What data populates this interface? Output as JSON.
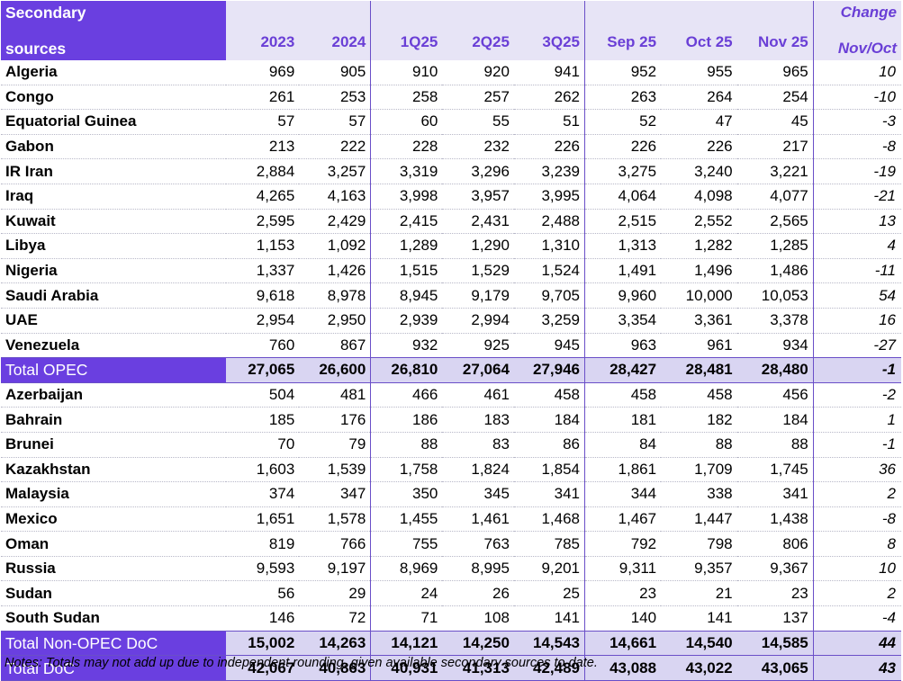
{
  "header": {
    "name_line1": "Secondary",
    "name_line2": "sources",
    "columns": [
      "2023",
      "2024",
      "1Q25",
      "2Q25",
      "3Q25",
      "Sep 25",
      "Oct 25",
      "Nov 25"
    ],
    "change_line1": "Change",
    "change_line2": "Nov/Oct"
  },
  "opec_rows": [
    {
      "name": "Algeria",
      "values": [
        "969",
        "905",
        "910",
        "920",
        "941",
        "952",
        "955",
        "965"
      ],
      "change": "10"
    },
    {
      "name": "Congo",
      "values": [
        "261",
        "253",
        "258",
        "257",
        "262",
        "263",
        "264",
        "254"
      ],
      "change": "-10"
    },
    {
      "name": "Equatorial Guinea",
      "values": [
        "57",
        "57",
        "60",
        "55",
        "51",
        "52",
        "47",
        "45"
      ],
      "change": "-3"
    },
    {
      "name": "Gabon",
      "values": [
        "213",
        "222",
        "228",
        "232",
        "226",
        "226",
        "226",
        "217"
      ],
      "change": "-8"
    },
    {
      "name": "IR Iran",
      "values": [
        "2,884",
        "3,257",
        "3,319",
        "3,296",
        "3,239",
        "3,275",
        "3,240",
        "3,221"
      ],
      "change": "-19"
    },
    {
      "name": "Iraq",
      "values": [
        "4,265",
        "4,163",
        "3,998",
        "3,957",
        "3,995",
        "4,064",
        "4,098",
        "4,077"
      ],
      "change": "-21"
    },
    {
      "name": "Kuwait",
      "values": [
        "2,595",
        "2,429",
        "2,415",
        "2,431",
        "2,488",
        "2,515",
        "2,552",
        "2,565"
      ],
      "change": "13"
    },
    {
      "name": "Libya",
      "values": [
        "1,153",
        "1,092",
        "1,289",
        "1,290",
        "1,310",
        "1,313",
        "1,282",
        "1,285"
      ],
      "change": "4"
    },
    {
      "name": "Nigeria",
      "values": [
        "1,337",
        "1,426",
        "1,515",
        "1,529",
        "1,524",
        "1,491",
        "1,496",
        "1,486"
      ],
      "change": "-11"
    },
    {
      "name": "Saudi Arabia",
      "values": [
        "9,618",
        "8,978",
        "8,945",
        "9,179",
        "9,705",
        "9,960",
        "10,000",
        "10,053"
      ],
      "change": "54"
    },
    {
      "name": "UAE",
      "values": [
        "2,954",
        "2,950",
        "2,939",
        "2,994",
        "3,259",
        "3,354",
        "3,361",
        "3,378"
      ],
      "change": "16"
    },
    {
      "name": "Venezuela",
      "values": [
        "760",
        "867",
        "932",
        "925",
        "945",
        "963",
        "961",
        "934"
      ],
      "change": "-27"
    }
  ],
  "total_opec": {
    "name": "Total  OPEC",
    "values": [
      "27,065",
      "26,600",
      "26,810",
      "27,064",
      "27,946",
      "28,427",
      "28,481",
      "28,480"
    ],
    "change": "-1"
  },
  "non_opec_rows": [
    {
      "name": "Azerbaijan",
      "values": [
        "504",
        "481",
        "466",
        "461",
        "458",
        "458",
        "458",
        "456"
      ],
      "change": "-2"
    },
    {
      "name": "Bahrain",
      "values": [
        "185",
        "176",
        "186",
        "183",
        "184",
        "181",
        "182",
        "184"
      ],
      "change": "1"
    },
    {
      "name": "Brunei",
      "values": [
        "70",
        "79",
        "88",
        "83",
        "86",
        "84",
        "88",
        "88"
      ],
      "change": "-1"
    },
    {
      "name": "Kazakhstan",
      "values": [
        "1,603",
        "1,539",
        "1,758",
        "1,824",
        "1,854",
        "1,861",
        "1,709",
        "1,745"
      ],
      "change": "36"
    },
    {
      "name": "Malaysia",
      "values": [
        "374",
        "347",
        "350",
        "345",
        "341",
        "344",
        "338",
        "341"
      ],
      "change": "2"
    },
    {
      "name": "Mexico",
      "values": [
        "1,651",
        "1,578",
        "1,455",
        "1,461",
        "1,468",
        "1,467",
        "1,447",
        "1,438"
      ],
      "change": "-8"
    },
    {
      "name": "Oman",
      "values": [
        "819",
        "766",
        "755",
        "763",
        "785",
        "792",
        "798",
        "806"
      ],
      "change": "8"
    },
    {
      "name": "Russia",
      "values": [
        "9,593",
        "9,197",
        "8,969",
        "8,995",
        "9,201",
        "9,311",
        "9,357",
        "9,367"
      ],
      "change": "10"
    },
    {
      "name": "Sudan",
      "values": [
        "56",
        "29",
        "24",
        "26",
        "25",
        "23",
        "21",
        "23"
      ],
      "change": "2"
    },
    {
      "name": "South Sudan",
      "values": [
        "146",
        "72",
        "71",
        "108",
        "141",
        "140",
        "141",
        "137"
      ],
      "change": "-4"
    }
  ],
  "total_non_opec": {
    "name": "Total Non-OPEC DoC",
    "values": [
      "15,002",
      "14,263",
      "14,121",
      "14,250",
      "14,543",
      "14,661",
      "14,540",
      "14,585"
    ],
    "change": "44"
  },
  "total_doc": {
    "name": "Total DoC",
    "values": [
      "42,067",
      "40,863",
      "40,931",
      "41,313",
      "42,489",
      "43,088",
      "43,022",
      "43,065"
    ],
    "change": "43"
  },
  "notes": "Notes: Totals may not add up due to independent rounding, given available secondary sources to date.",
  "colors": {
    "accent": "#6a3fe0",
    "header_bg": "#e7e4f6",
    "header_text": "#6a3fd6",
    "total_bg": "#d9d5f2"
  }
}
